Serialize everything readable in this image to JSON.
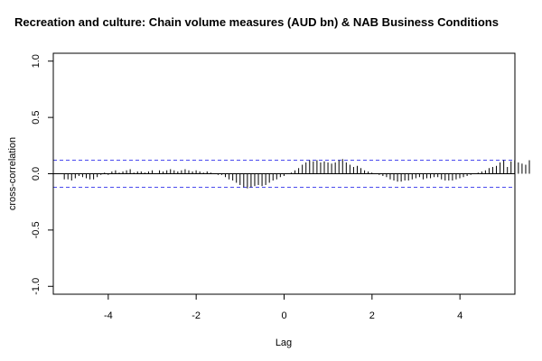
{
  "chart_data": {
    "type": "bar",
    "title": "Recreation and culture: Chain volume measures (AUD bn) & NAB Business Conditions",
    "xlabel": "Lag",
    "ylabel": "cross-correlation",
    "xlim": [
      -5.25,
      5.25
    ],
    "ylim": [
      -1.07,
      1.07
    ],
    "x_ticks": [
      -4,
      -2,
      0,
      2,
      4
    ],
    "y_ticks": [
      -1.0,
      -0.5,
      0.0,
      0.5,
      1.0
    ],
    "x_tick_labels": [
      "-4",
      "-2",
      "0",
      "2",
      "4"
    ],
    "y_tick_labels": [
      "-1.0",
      "-0.5",
      "0.0",
      "0.5",
      "1.0"
    ],
    "ci_upper": 0.12,
    "ci_lower": -0.12,
    "colors": {
      "ci_line": "#4a4aee",
      "zero_line": "#000000",
      "bars": "#000000"
    },
    "lag_start": -5.0,
    "lag_step": 0.0833,
    "values": [
      -0.05,
      -0.05,
      -0.06,
      -0.04,
      -0.02,
      -0.03,
      -0.04,
      -0.05,
      -0.05,
      -0.03,
      -0.01,
      0.01,
      -0.01,
      0.02,
      0.03,
      0.01,
      0.02,
      0.03,
      0.04,
      0.01,
      0.02,
      0.02,
      0.01,
      0.02,
      0.03,
      0.0,
      0.03,
      0.02,
      0.03,
      0.04,
      0.03,
      0.02,
      0.03,
      0.04,
      0.03,
      0.02,
      0.03,
      0.02,
      0.01,
      0.02,
      0.01,
      0.0,
      -0.01,
      -0.01,
      -0.03,
      -0.05,
      -0.06,
      -0.08,
      -0.1,
      -0.12,
      -0.13,
      -0.12,
      -0.11,
      -0.1,
      -0.11,
      -0.1,
      -0.08,
      -0.06,
      -0.05,
      -0.03,
      -0.02,
      0.0,
      0.01,
      0.03,
      0.05,
      0.08,
      0.1,
      0.12,
      0.11,
      0.12,
      0.1,
      0.11,
      0.1,
      0.09,
      0.1,
      0.12,
      0.13,
      0.1,
      0.08,
      0.06,
      0.07,
      0.05,
      0.03,
      0.02,
      0.01,
      0.0,
      -0.01,
      -0.02,
      -0.03,
      -0.05,
      -0.06,
      -0.07,
      -0.07,
      -0.06,
      -0.06,
      -0.05,
      -0.04,
      -0.03,
      -0.05,
      -0.04,
      -0.04,
      -0.03,
      -0.03,
      -0.05,
      -0.06,
      -0.06,
      -0.06,
      -0.05,
      -0.04,
      -0.03,
      -0.02,
      -0.01,
      0.0,
      0.01,
      0.02,
      0.03,
      0.05,
      0.06,
      0.07,
      0.1,
      0.12,
      0.06,
      0.11,
      0.12,
      0.1,
      0.09,
      0.08,
      0.12
    ]
  }
}
